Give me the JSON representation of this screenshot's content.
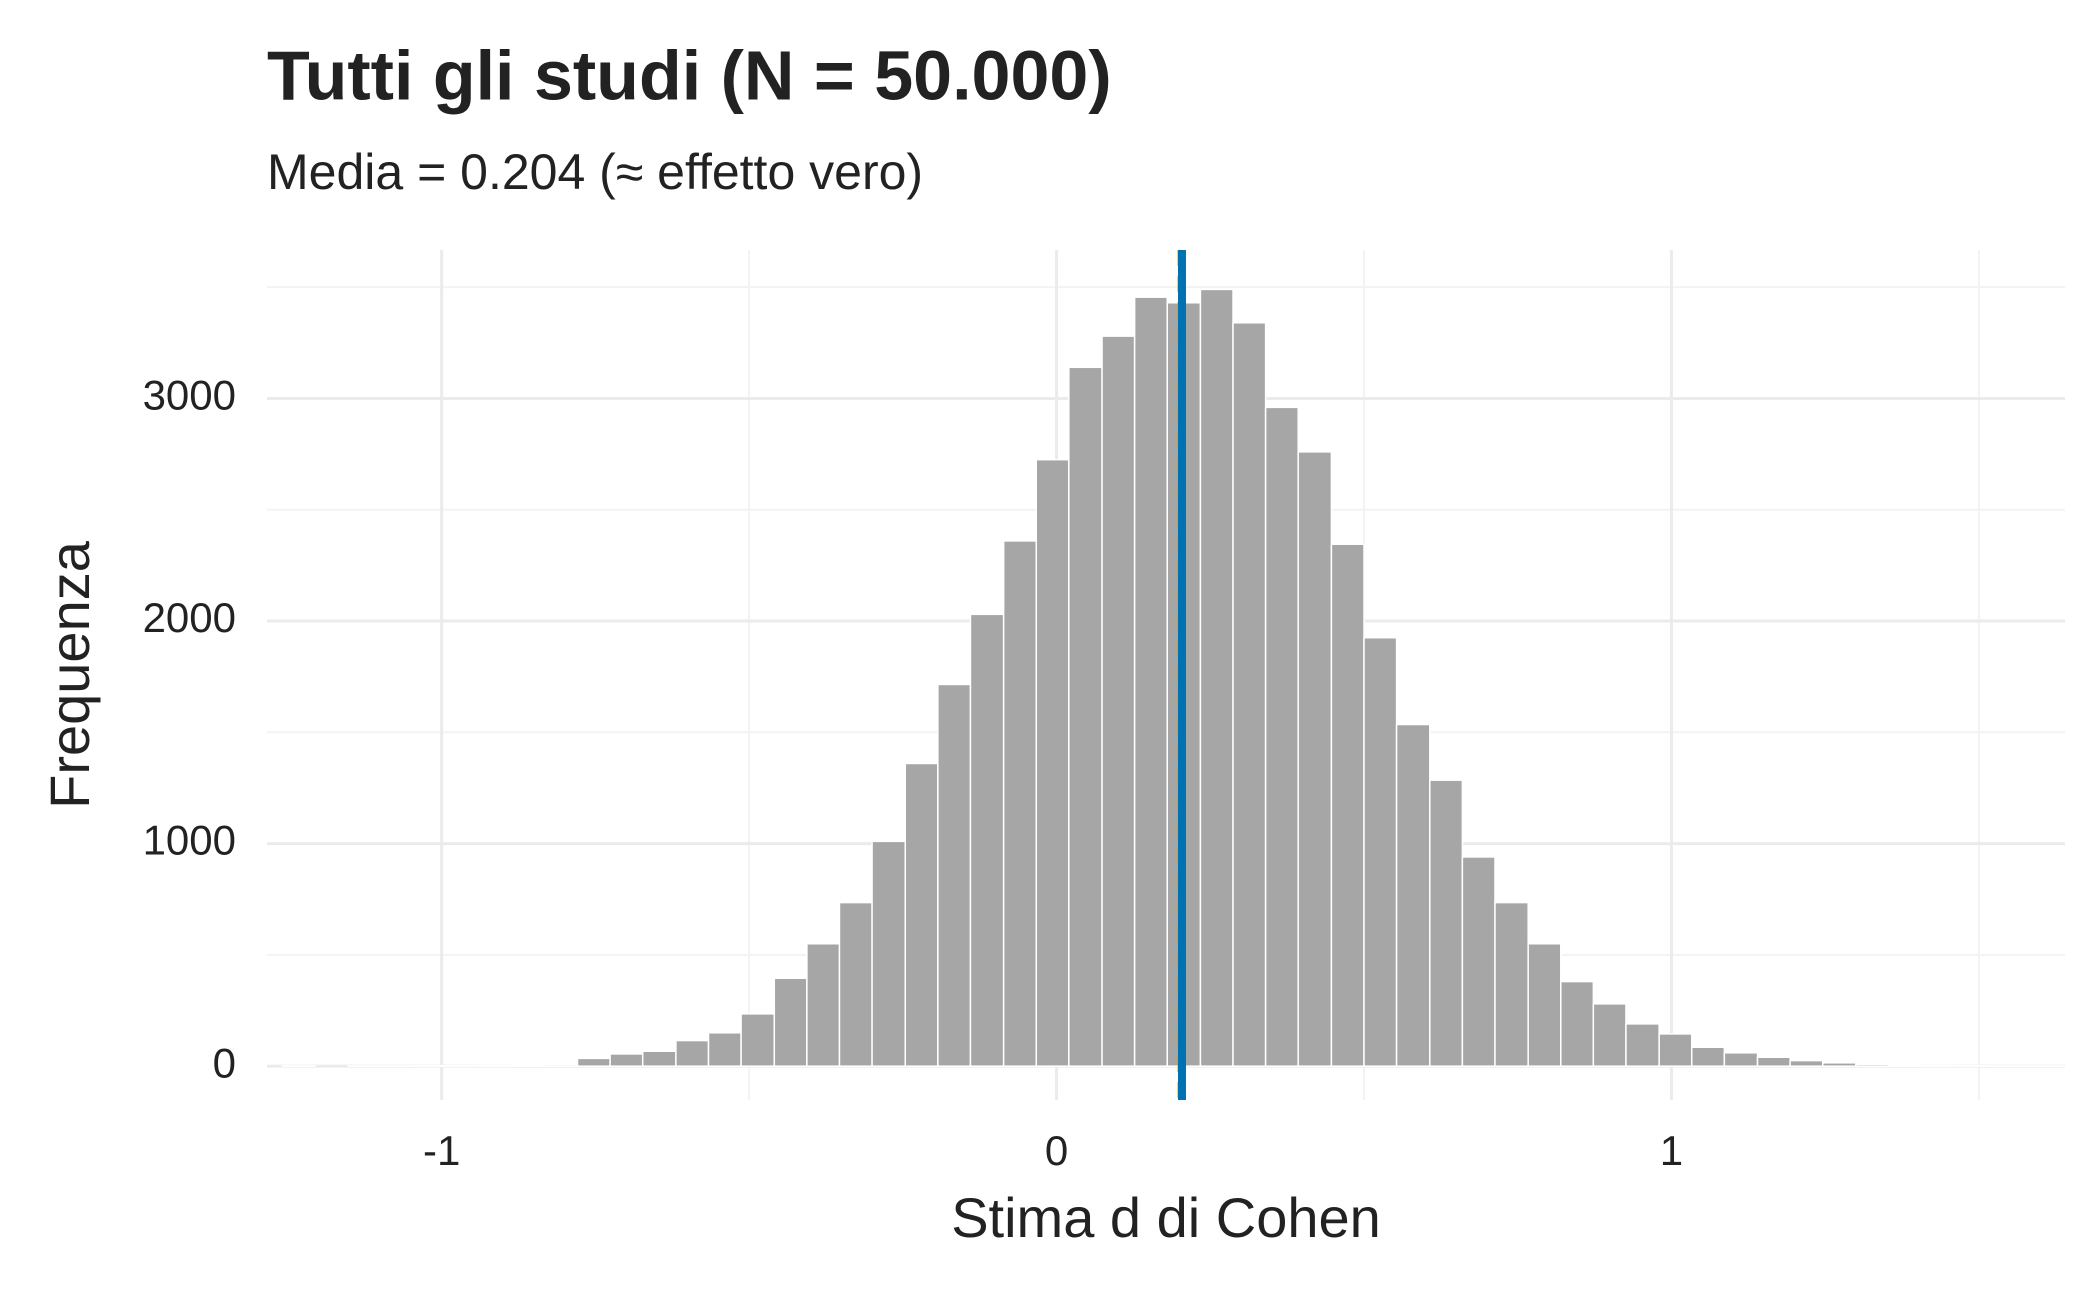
{
  "chart_data": {
    "type": "histogram",
    "title": "Tutti gli studi (N = 50.000)",
    "subtitle": "Media = 0.204 (≈ effetto vero)",
    "xlabel": "Stima d di Cohen",
    "ylabel": "Frequenza",
    "bins": [
      -1.259,
      -1.206,
      -1.152,
      -1.099,
      -1.046,
      -0.992,
      -0.939,
      -0.886,
      -0.833,
      -0.779,
      -0.726,
      -0.673,
      -0.619,
      -0.566,
      -0.513,
      -0.459,
      -0.406,
      -0.353,
      -0.3,
      -0.246,
      -0.193,
      -0.14,
      -0.086,
      -0.033,
      0.02,
      0.074,
      0.127,
      0.18,
      0.234,
      0.287,
      0.34,
      0.393,
      0.447,
      0.5,
      0.553,
      0.607,
      0.66,
      0.713,
      0.767,
      0.82,
      0.873,
      0.926,
      0.98,
      1.033,
      1.086,
      1.14,
      1.193,
      1.246,
      1.3,
      1.353,
      1.406,
      1.459,
      1.513,
      1.566,
      1.619,
      1.673
    ],
    "values": [
      1,
      0,
      1,
      1,
      2,
      2,
      3,
      5,
      7,
      35,
      55,
      67,
      115,
      150,
      235,
      395,
      550,
      735,
      1010,
      1360,
      1715,
      2030,
      2360,
      2725,
      3140,
      3280,
      3455,
      3430,
      3490,
      3340,
      2960,
      2760,
      2345,
      1925,
      1535,
      1285,
      940,
      735,
      550,
      380,
      280,
      190,
      145,
      85,
      60,
      40,
      25,
      15,
      8,
      5,
      3,
      2,
      1,
      1,
      1
    ],
    "color": "#a6a6a6",
    "vlines": [
      {
        "value": 0.2,
        "color": "#E69F00",
        "dashed": true
      },
      {
        "value": 0.204,
        "color": "#0072B2",
        "dashed": false
      }
    ],
    "xlim": [
      -1.284,
      1.64
    ],
    "xticks": [
      -1,
      0,
      1
    ],
    "ylim": [
      -152,
      3667
    ],
    "yticks": [
      0,
      1000,
      2000,
      3000
    ],
    "grid": true
  }
}
